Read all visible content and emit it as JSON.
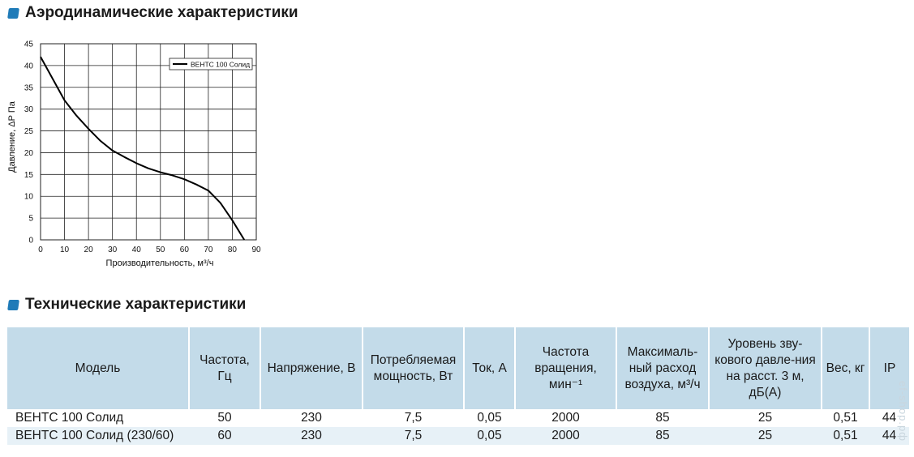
{
  "section_aero": "Аэродинамические характеристики",
  "section_tech": "Технические характеристики",
  "chart_data": {
    "type": "line",
    "xlabel": "Производительность, м³/ч",
    "ylabel": "Давление, ΔP Па",
    "xlim": [
      0,
      90
    ],
    "ylim": [
      0,
      45
    ],
    "xticks": [
      0,
      10,
      20,
      30,
      40,
      50,
      60,
      70,
      80,
      90
    ],
    "yticks": [
      0,
      5,
      10,
      15,
      20,
      25,
      30,
      35,
      40,
      45
    ],
    "grid": true,
    "legend": "top-right",
    "series": [
      {
        "name": "ВЕНТС 100 Солид",
        "x": [
          0,
          5,
          10,
          15,
          20,
          25,
          30,
          35,
          40,
          45,
          50,
          55,
          60,
          65,
          70,
          75,
          80,
          85
        ],
        "y": [
          42,
          37,
          32,
          28.5,
          25.5,
          22.7,
          20.5,
          19,
          17.6,
          16.4,
          15.5,
          14.8,
          13.9,
          12.7,
          11.3,
          8.5,
          4.5,
          0
        ]
      }
    ]
  },
  "table": {
    "headers": [
      "Модель",
      "Частота, Гц",
      "Напряжение, В",
      "Потребляемая мощность, Вт",
      "Ток, А",
      "Частота вращения, мин⁻¹",
      "Максималь-ный расход воздуха, м³/ч",
      "Уровень зву-кового давле-ния на расст. 3 м, дБ(А)",
      "Вес, кг",
      "IP"
    ],
    "rows": [
      [
        "ВЕНТС 100 Солид",
        "50",
        "230",
        "7,5",
        "0,05",
        "2000",
        "85",
        "25",
        "0,51",
        "44"
      ],
      [
        "ВЕНТС 100 Солид (230/60)",
        "60",
        "230",
        "7,5",
        "0,05",
        "2000",
        "85",
        "25",
        "0,51",
        "44"
      ]
    ]
  },
  "watermark": "ef-shop.рф",
  "colors": {
    "bullet": "#1f7bb8",
    "header_bg": "#c3dbe9",
    "alt_row_bg": "#e7f1f7"
  }
}
